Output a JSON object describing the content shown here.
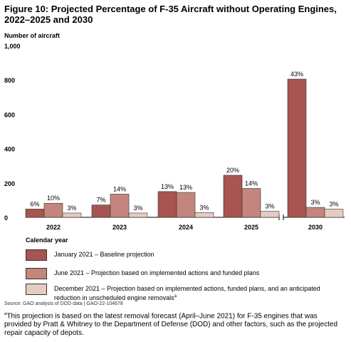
{
  "figure": {
    "title": "Figure 10: Projected Percentage of F-35 Aircraft without Operating Engines, 2022–2025 and 2030",
    "y_axis_label": "Number of aircraft",
    "x_axis_label": "Calendar year",
    "source": "Source: GAO analysis of DOD data  |  GAO-22-104678",
    "footnote_marker": "a",
    "footnote": "This projection is based on the latest removal forecast (April–June 2021) for F-35 engines that was provided by Pratt & Whitney to the Department of Defense (DOD) and other factors, such as the projected repair capacity of depots."
  },
  "legend": [
    {
      "label": "January 2021 – Baseline projection",
      "color": "#a85450"
    },
    {
      "label": "June 2021 – Projection based on implemented actions and funded plans",
      "color": "#c3857c"
    },
    {
      "label": "December 2021 – Projection based on implemented actions, funded plans, and an anticipated reduction in unscheduled engine removals",
      "marker": "a",
      "color": "#e6cbc2"
    }
  ],
  "chart_data": {
    "type": "bar",
    "categories": [
      "2022",
      "2023",
      "2024",
      "2025",
      "2030"
    ],
    "series": [
      {
        "name": "January 2021 – Baseline projection",
        "values": [
          48,
          72,
          150,
          245,
          805
        ],
        "labels": [
          "6%",
          "7%",
          "13%",
          "20%",
          "43%"
        ],
        "color": "#a85450"
      },
      {
        "name": "June 2021 – Projection based on implemented actions and funded plans",
        "values": [
          82,
          135,
          145,
          168,
          58
        ],
        "labels": [
          "10%",
          "14%",
          "13%",
          "14%",
          "3%"
        ],
        "color": "#c3857c"
      },
      {
        "name": "December 2021 – Projection based on implemented actions, funded plans, and an anticipated reduction in unscheduled engine removals",
        "values": [
          25,
          25,
          28,
          35,
          48
        ],
        "labels": [
          "3%",
          "3%",
          "3%",
          "3%",
          "3%"
        ],
        "color": "#e6cbc2"
      }
    ],
    "y_ticks": [
      "0",
      "200",
      "400",
      "600",
      "800",
      "1,000"
    ],
    "ylim": [
      0,
      1000
    ],
    "axis_break_after": "2025",
    "grid": false
  }
}
